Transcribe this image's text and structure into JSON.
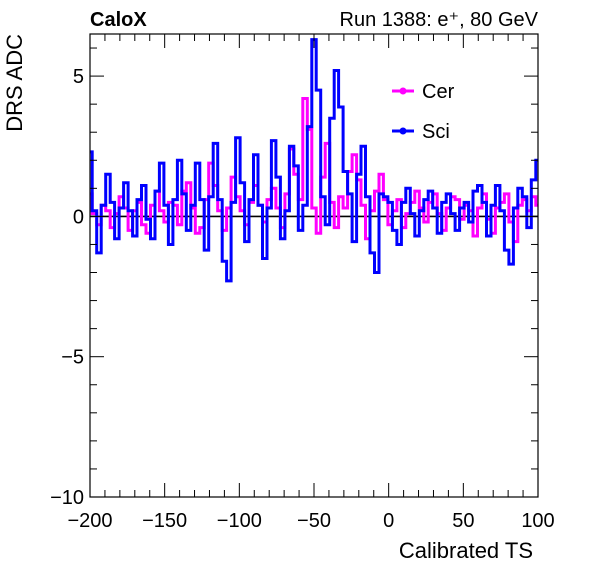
{
  "header": {
    "left_label": "CaloX",
    "right_label": "Run 1388: e⁺, 80 GeV"
  },
  "chart_data": {
    "type": "line",
    "title": "",
    "xlabel": "Calibrated TS",
    "ylabel": "DRS ADC",
    "xlim": [
      -200,
      100
    ],
    "ylim": [
      -10,
      6.5
    ],
    "x_ticks": [
      -200,
      -150,
      -100,
      -50,
      0,
      50,
      100
    ],
    "y_ticks": [
      -10,
      -5,
      0,
      5
    ],
    "x_tick_labels": [
      "−200",
      "−150",
      "−100",
      "−50",
      "0",
      "50",
      "100"
    ],
    "y_tick_labels": [
      "−10",
      "−5",
      "0",
      "5"
    ],
    "grid": false,
    "legend_position": "top-right",
    "zero_line": true,
    "series": [
      {
        "name": "Cer",
        "color": "#ff00ff",
        "x": [
          -200,
          -197,
          -194,
          -191,
          -188,
          -185,
          -182,
          -179,
          -176,
          -173,
          -170,
          -167,
          -164,
          -161,
          -158,
          -155,
          -152,
          -149,
          -146,
          -143,
          -140,
          -137,
          -134,
          -131,
          -128,
          -125,
          -122,
          -119,
          -116,
          -113,
          -110,
          -107,
          -104,
          -101,
          -98,
          -95,
          -92,
          -89,
          -86,
          -83,
          -80,
          -77,
          -74,
          -71,
          -68,
          -65,
          -62,
          -59,
          -56,
          -53,
          -50,
          -47,
          -44,
          -41,
          -38,
          -35,
          -32,
          -29,
          -26,
          -23,
          -20,
          -17,
          -14,
          -11,
          -8,
          -5,
          -2,
          1,
          4,
          7,
          10,
          13,
          16,
          19,
          22,
          25,
          28,
          31,
          34,
          37,
          40,
          43,
          46,
          49,
          52,
          55,
          58,
          61,
          64,
          67,
          70,
          73,
          76,
          79,
          82,
          85,
          88,
          91,
          94,
          97,
          100
        ],
        "y": [
          0.8,
          0.1,
          -0.3,
          0.4,
          0.2,
          -0.4,
          0.1,
          0.7,
          0.3,
          -0.5,
          0.2,
          0.5,
          -0.3,
          -0.6,
          0.4,
          0.9,
          0.2,
          -0.2,
          0.5,
          0.4,
          -0.3,
          0.9,
          1.2,
          0.3,
          -0.6,
          -0.4,
          0.6,
          1.9,
          1.1,
          0.2,
          -0.5,
          0.3,
          1.4,
          0.7,
          0.2,
          -0.3,
          0.5,
          1.1,
          0.4,
          -0.2,
          0.6,
          1.0,
          0.3,
          -0.4,
          0.8,
          2.4,
          1.5,
          0.6,
          4.2,
          3.1,
          0.3,
          -0.6,
          1.4,
          2.6,
          0.5,
          -0.4,
          0.7,
          0.3,
          1.6,
          2.2,
          1.3,
          0.4,
          -0.8,
          0.2,
          0.9,
          1.5,
          0.6,
          -0.3,
          0.2,
          0.6,
          -0.4,
          0.1,
          0.5,
          0.9,
          0.3,
          -0.2,
          0.5,
          0.8,
          0.1,
          -0.5,
          0.3,
          0.7,
          0.6,
          -0.1,
          0.4,
          0.2,
          -0.7,
          0.3,
          0.8,
          -0.1,
          -0.6,
          0.3,
          0.5,
          0.8,
          -0.2,
          -0.9,
          0.4,
          0.6,
          0.2,
          0.7,
          0.4
        ]
      },
      {
        "name": "Sci",
        "color": "#0000ff",
        "x": [
          -200,
          -197,
          -194,
          -191,
          -188,
          -185,
          -182,
          -179,
          -176,
          -173,
          -170,
          -167,
          -164,
          -161,
          -158,
          -155,
          -152,
          -149,
          -146,
          -143,
          -140,
          -137,
          -134,
          -131,
          -128,
          -125,
          -122,
          -119,
          -116,
          -113,
          -110,
          -107,
          -104,
          -101,
          -98,
          -95,
          -92,
          -89,
          -86,
          -83,
          -80,
          -77,
          -74,
          -71,
          -68,
          -65,
          -62,
          -59,
          -56,
          -53,
          -50,
          -47,
          -44,
          -41,
          -38,
          -35,
          -32,
          -29,
          -26,
          -23,
          -20,
          -17,
          -14,
          -11,
          -8,
          -5,
          -2,
          1,
          4,
          7,
          10,
          13,
          16,
          19,
          22,
          25,
          28,
          31,
          34,
          37,
          40,
          43,
          46,
          49,
          52,
          55,
          58,
          61,
          64,
          67,
          70,
          73,
          76,
          79,
          82,
          85,
          88,
          91,
          94,
          97,
          100
        ],
        "y": [
          2.3,
          0.2,
          -1.3,
          0.4,
          1.5,
          0.5,
          -0.8,
          0.3,
          1.2,
          0.2,
          -0.7,
          0.6,
          1.1,
          -0.1,
          -0.8,
          0.9,
          1.9,
          0.4,
          -1.0,
          0.6,
          2.0,
          0.8,
          -0.5,
          0.4,
          1.9,
          0.6,
          -1.2,
          0.7,
          2.6,
          0.6,
          -1.6,
          -2.3,
          0.5,
          2.8,
          1.2,
          -0.9,
          0.6,
          2.2,
          0.4,
          -1.5,
          0.3,
          2.7,
          1.4,
          -0.8,
          0.2,
          2.5,
          1.8,
          -0.5,
          0.4,
          3.2,
          6.3,
          4.5,
          0.7,
          -0.3,
          3.5,
          5.2,
          3.9,
          1.6,
          0.8,
          -0.9,
          1.5,
          2.5,
          0.7,
          -1.3,
          -2.0,
          0.8,
          0.7,
          0.5,
          -0.5,
          -1.0,
          0.5,
          1.0,
          0.1,
          -0.7,
          0.2,
          0.6,
          0.9,
          0.3,
          -0.6,
          0.5,
          0.8,
          0.1,
          -0.5,
          0.3,
          0.5,
          -0.2,
          0.9,
          1.1,
          0.5,
          -0.7,
          0.4,
          1.1,
          0.2,
          -1.2,
          -1.7,
          0.3,
          1.0,
          0.7,
          -0.4,
          1.3,
          2.0
        ]
      }
    ]
  }
}
